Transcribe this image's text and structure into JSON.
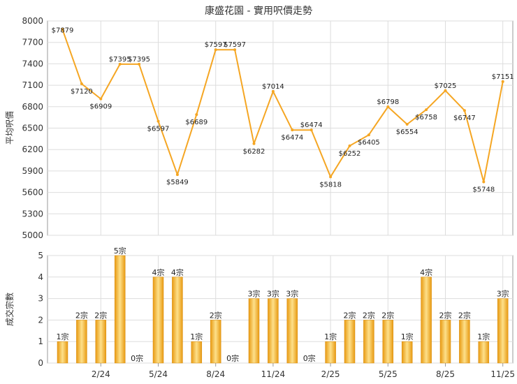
{
  "chart_data": [
    {
      "type": "line",
      "title": "康盛花園 - 實用呎價走勢",
      "ylabel": "平均呎價",
      "ylim": [
        5000,
        8000
      ],
      "yticks": [
        5000,
        5300,
        5600,
        5900,
        6200,
        6500,
        6800,
        7100,
        7400,
        7700,
        8000
      ],
      "color": "#f5a623",
      "grid": true,
      "series": [
        {
          "points": [
            {
              "x": 0,
              "y": 7879,
              "label": "$7879"
            },
            {
              "x": 1,
              "y": 7120,
              "label": "$7120"
            },
            {
              "x": 2,
              "y": 6909,
              "label": "$6909"
            },
            {
              "x": 3,
              "y": 7395,
              "label": "$7395"
            },
            {
              "x": 4,
              "y": 7395,
              "label": "$7395"
            },
            {
              "x": 5,
              "y": 6597,
              "label": "$6597"
            },
            {
              "x": 6,
              "y": 5849,
              "label": "$5849"
            },
            {
              "x": 7,
              "y": 6689,
              "label": "$6689"
            },
            {
              "x": 8,
              "y": 7597,
              "label": "$7597"
            },
            {
              "x": 9,
              "y": 7597,
              "label": "$7597"
            },
            {
              "x": 10,
              "y": 6282,
              "label": "$6282"
            },
            {
              "x": 11,
              "y": 7014,
              "label": "$7014"
            },
            {
              "x": 12,
              "y": 6474,
              "label": "$6474"
            },
            {
              "x": 13,
              "y": 6474,
              "label": "$6474"
            },
            {
              "x": 14,
              "y": 5818,
              "label": "$5818"
            },
            {
              "x": 15,
              "y": 6252,
              "label": "$6252"
            },
            {
              "x": 16,
              "y": 6405,
              "label": "$6405"
            },
            {
              "x": 17,
              "y": 6798,
              "label": "$6798"
            },
            {
              "x": 18,
              "y": 6554,
              "label": "$6554"
            },
            {
              "x": 19,
              "y": 6758,
              "label": "$6758"
            },
            {
              "x": 20,
              "y": 7025,
              "label": "$7025"
            },
            {
              "x": 21,
              "y": 6747,
              "label": "$6747"
            },
            {
              "x": 22,
              "y": 5748,
              "label": "$5748"
            },
            {
              "x": 23,
              "y": 7151,
              "label": "$7151"
            }
          ]
        }
      ]
    },
    {
      "type": "bar",
      "ylabel": "成交宗數",
      "ylim": [
        0,
        5
      ],
      "yticks": [
        0,
        1,
        2,
        3,
        4,
        5
      ],
      "color": "#f5a623",
      "grid": true,
      "categories_count": 24,
      "xtick_labels": [
        {
          "index": 2,
          "label": "2/24"
        },
        {
          "index": 5,
          "label": "5/24"
        },
        {
          "index": 8,
          "label": "8/24"
        },
        {
          "index": 11,
          "label": "11/24"
        },
        {
          "index": 14,
          "label": "2/25"
        },
        {
          "index": 17,
          "label": "5/25"
        },
        {
          "index": 20,
          "label": "8/25"
        },
        {
          "index": 23,
          "label": "11/25"
        }
      ],
      "values": [
        1,
        2,
        2,
        5,
        0,
        4,
        4,
        1,
        2,
        0,
        3,
        3,
        3,
        0,
        1,
        2,
        2,
        2,
        1,
        4,
        2,
        2,
        1,
        3
      ],
      "labels": [
        "1宗",
        "2宗",
        "2宗",
        "5宗",
        "0宗",
        "4宗",
        "4宗",
        "1宗",
        "2宗",
        "0宗",
        "3宗",
        "3宗",
        "3宗",
        "0宗",
        "1宗",
        "2宗",
        "2宗",
        "2宗",
        "1宗",
        "4宗",
        "2宗",
        "2宗",
        "1宗",
        "3宗"
      ]
    }
  ]
}
